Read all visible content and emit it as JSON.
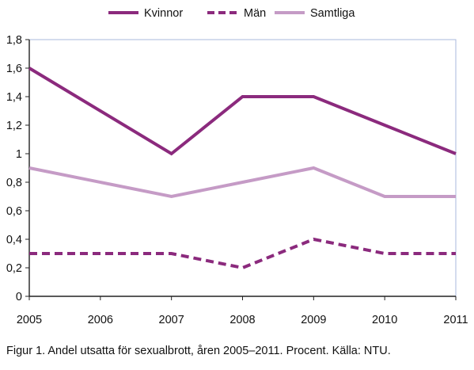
{
  "caption": "Figur 1. Andel utsatta för sexualbrott, åren 2005–2011. Procent. Källa: NTU.",
  "chart_data": {
    "type": "line",
    "x": [
      "2005",
      "2006",
      "2007",
      "2008",
      "2009",
      "2010",
      "2011"
    ],
    "ylim": [
      0,
      1.8
    ],
    "yticks": [
      "0",
      "0,2",
      "0,4",
      "0,6",
      "0,8",
      "1",
      "1,2",
      "1,4",
      "1,6",
      "1,8"
    ],
    "legend_position": "top",
    "grid": false,
    "series": [
      {
        "name": "Kvinnor",
        "style": "solid",
        "color": "#8b2a7d",
        "values": [
          1.6,
          null,
          1.0,
          1.4,
          1.4,
          1.2,
          1.0
        ]
      },
      {
        "name": "Män",
        "style": "dashed",
        "color": "#8b2a7d",
        "values": [
          0.3,
          null,
          0.3,
          0.2,
          0.4,
          0.3,
          0.3
        ]
      },
      {
        "name": "Samtliga",
        "style": "solid",
        "color": "#c59bc6",
        "values": [
          0.9,
          null,
          0.7,
          0.8,
          0.9,
          0.7,
          0.7
        ]
      }
    ]
  }
}
